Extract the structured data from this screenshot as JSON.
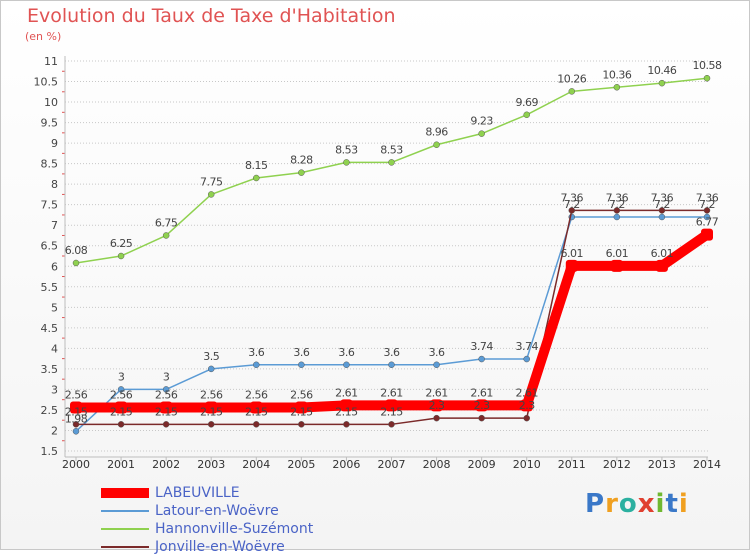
{
  "header": {
    "title": "Evolution du Taux de Taxe d'Habitation",
    "unit": "(en %)"
  },
  "logo": {
    "text": "Proxiti"
  },
  "colors": {
    "frame": "#c8c8c8",
    "grid": "#c8c8c8",
    "tick": "#e05353",
    "title": "#e05353",
    "legend_text": "#4a63c6",
    "logo_P": "#3a78c8",
    "logo_r": "#f0a020",
    "logo_o": "#2bb0a0",
    "logo_x": "#e04030",
    "logo_i": "#70b830",
    "logo_t": "#3a78c8",
    "logo_i2": "#f0a020"
  },
  "chart_data": {
    "type": "line",
    "x": [
      "2000",
      "2001",
      "2002",
      "2003",
      "2004",
      "2005",
      "2006",
      "2007",
      "2008",
      "2009",
      "2010",
      "2011",
      "2012",
      "2013",
      "2014"
    ],
    "ylim": [
      1.5,
      11
    ],
    "yticks": [
      "1.5",
      "2",
      "2.5",
      "3",
      "3.5",
      "4",
      "4.5",
      "5",
      "5.5",
      "6",
      "6.5",
      "7",
      "7.5",
      "8",
      "8.5",
      "9",
      "9.5",
      "10",
      "10.5",
      "11"
    ],
    "grid": "horizontal",
    "legend_placement": "bottom-left",
    "series": [
      {
        "name": "LABEUVILLE",
        "color": "#ff0000",
        "values": [
          2.56,
          2.56,
          2.56,
          2.56,
          2.56,
          2.56,
          2.61,
          2.61,
          2.61,
          2.61,
          2.61,
          6.01,
          6.01,
          6.01,
          6.77
        ],
        "labels": [
          "2.56",
          "2.56",
          "2.56",
          "2.56",
          "2.56",
          "2.56",
          "2.61",
          "2.61",
          "2.61",
          "2.61",
          "2.61",
          "6.01",
          "6.01",
          "6.01",
          "6.77"
        ]
      },
      {
        "name": "Latour-en-Woëvre",
        "color": "#5b9bd5",
        "values": [
          1.98,
          3,
          3,
          3.5,
          3.6,
          3.6,
          3.6,
          3.6,
          3.6,
          3.74,
          3.74,
          7.2,
          7.2,
          7.2,
          7.2
        ],
        "labels": [
          "1.98",
          "3",
          "3",
          "3.5",
          "3.6",
          "3.6",
          "3.6",
          "3.6",
          "3.6",
          "3.74",
          "3.74",
          "7.2",
          "7.2",
          "7.2",
          "7.2"
        ]
      },
      {
        "name": "Hannonville-Suzémont",
        "color": "#8fd14f",
        "values": [
          6.08,
          6.25,
          6.75,
          7.75,
          8.15,
          8.28,
          8.53,
          8.53,
          8.96,
          9.23,
          9.69,
          10.26,
          10.36,
          10.46,
          10.58
        ],
        "labels": [
          "6.08",
          "6.25",
          "6.75",
          "7.75",
          "8.15",
          "8.28",
          "8.53",
          "8.53",
          "8.96",
          "9.23",
          "9.69",
          "10.26",
          "10.36",
          "10.46",
          "10.58"
        ]
      },
      {
        "name": "Jonville-en-Woëvre",
        "color": "#7b2a2a",
        "values": [
          2.15,
          2.15,
          2.15,
          2.15,
          2.15,
          2.15,
          2.15,
          2.15,
          2.3,
          2.3,
          2.3,
          7.36,
          7.36,
          7.36,
          7.36
        ],
        "labels": [
          "2.15",
          "2.15",
          "2.15",
          "2.15",
          "2.15",
          "2.15",
          "2.15",
          "2.15",
          "2.3",
          "2.3",
          "2.3",
          "7.36",
          "7.36",
          "7.36",
          "7.36"
        ]
      }
    ]
  }
}
